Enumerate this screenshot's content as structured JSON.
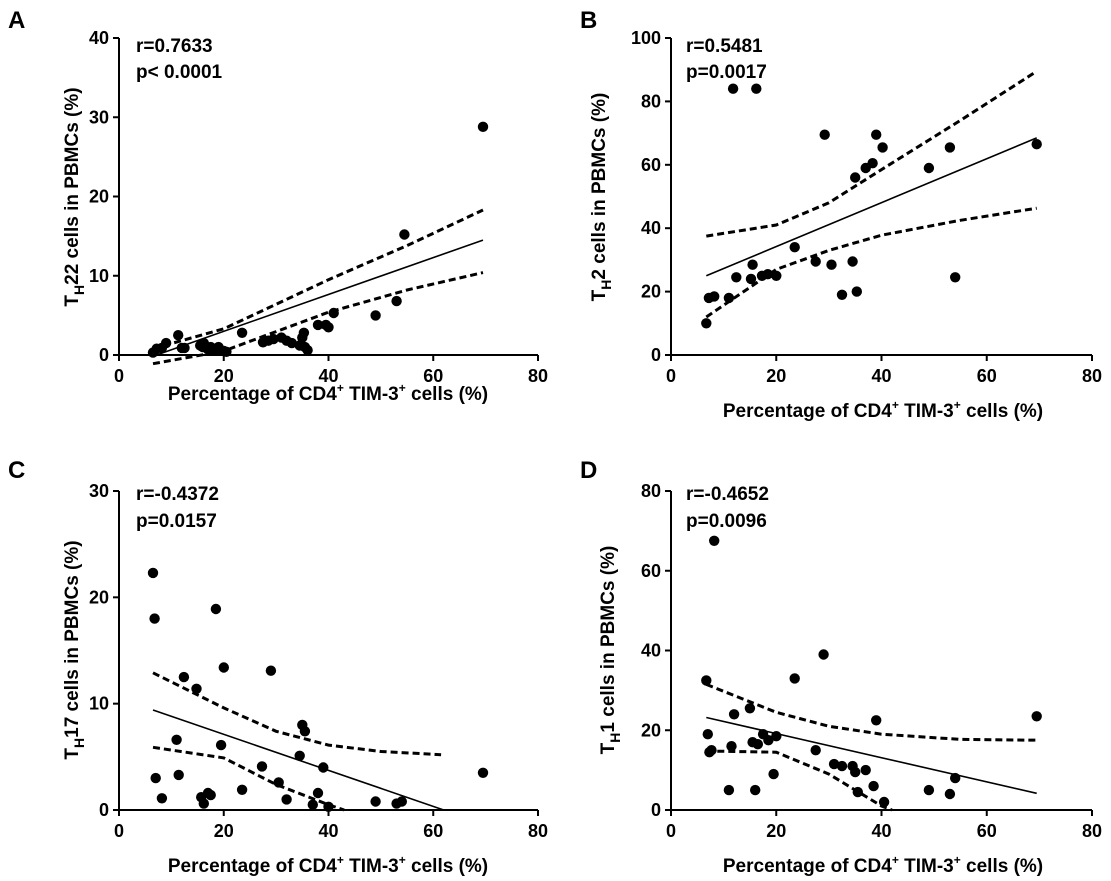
{
  "chart_data": [
    {
      "panel": "A",
      "type": "scatter",
      "stat_r": "r=0.7633",
      "stat_p": "p< 0.0001",
      "ylabel_main": "T",
      "ylabel_sub": "H",
      "ylabel_rest": "22 cells in PBMCs (%)",
      "xlabel_main": "Percentage of CD4",
      "xlabel_sup1": "+",
      "xlabel_mid": " TIM-3",
      "xlabel_sup2": "+",
      "xlabel_rest": " cells (%)",
      "xlim": [
        0,
        80
      ],
      "ylim": [
        0,
        40
      ],
      "xticks": [
        0,
        20,
        40,
        60,
        80
      ],
      "yticks": [
        0,
        10,
        20,
        30,
        40
      ],
      "points": [
        [
          6.5,
          0.3
        ],
        [
          7.2,
          0.8
        ],
        [
          8.2,
          0.9
        ],
        [
          9,
          1.5
        ],
        [
          11.3,
          2.5
        ],
        [
          12,
          0.9
        ],
        [
          12.5,
          0.9
        ],
        [
          15.5,
          1.2
        ],
        [
          16,
          1
        ],
        [
          16.2,
          1.5
        ],
        [
          17,
          0.7
        ],
        [
          17.5,
          1
        ],
        [
          18.5,
          0.6
        ],
        [
          19,
          1
        ],
        [
          20,
          0.5
        ],
        [
          20.5,
          0.4
        ],
        [
          23.5,
          2.8
        ],
        [
          27.5,
          1.6
        ],
        [
          28.5,
          1.8
        ],
        [
          29.5,
          2
        ],
        [
          31,
          2.2
        ],
        [
          32,
          1.8
        ],
        [
          33,
          1.5
        ],
        [
          34.5,
          1.2
        ],
        [
          35,
          2.2
        ],
        [
          35.3,
          2.8
        ],
        [
          35.5,
          1
        ],
        [
          36,
          0.6
        ],
        [
          38,
          3.8
        ],
        [
          39.5,
          3.8
        ],
        [
          40,
          3.5
        ],
        [
          41,
          5.3
        ],
        [
          49,
          5
        ],
        [
          53,
          6.8
        ],
        [
          54.5,
          15.2
        ],
        [
          69.5,
          28.8
        ]
      ],
      "fit": [
        [
          6.5,
          -0.15
        ],
        [
          69.5,
          14.5
        ]
      ],
      "ci_upper": [
        [
          6.5,
          0.8
        ],
        [
          20,
          3.3
        ],
        [
          40,
          9.5
        ],
        [
          55,
          13.8
        ],
        [
          69.5,
          18.3
        ]
      ],
      "ci_lower": [
        [
          6.5,
          -1.1
        ],
        [
          20,
          0.5
        ],
        [
          40,
          5.4
        ],
        [
          55,
          8.2
        ],
        [
          69.5,
          10.4
        ]
      ]
    },
    {
      "panel": "B",
      "type": "scatter",
      "stat_r": "r=0.5481",
      "stat_p": "p=0.0017",
      "ylabel_main": "T",
      "ylabel_sub": "H",
      "ylabel_rest": "2 cells in PBMCs (%)",
      "xlabel_main": "Percentage of CD4",
      "xlabel_sup1": "+",
      "xlabel_mid": " TIM-3",
      "xlabel_sup2": "+",
      "xlabel_rest": " cells (%)",
      "xlim": [
        0,
        80
      ],
      "ylim": [
        0,
        100
      ],
      "xticks": [
        0,
        20,
        40,
        60,
        80
      ],
      "yticks": [
        0,
        20,
        40,
        60,
        80,
        100
      ],
      "points": [
        [
          6.7,
          10
        ],
        [
          7.2,
          18
        ],
        [
          8.2,
          18.5
        ],
        [
          11,
          18
        ],
        [
          11.8,
          84
        ],
        [
          12.4,
          24.5
        ],
        [
          15.2,
          24
        ],
        [
          15.5,
          28.5
        ],
        [
          16.2,
          84
        ],
        [
          17.3,
          25
        ],
        [
          18.4,
          25.5
        ],
        [
          20,
          25
        ],
        [
          23.5,
          34
        ],
        [
          27.5,
          29.5
        ],
        [
          29.2,
          69.5
        ],
        [
          30.5,
          28.5
        ],
        [
          32.5,
          19
        ],
        [
          34.5,
          29.5
        ],
        [
          35,
          56
        ],
        [
          35.3,
          20
        ],
        [
          37,
          59
        ],
        [
          38.3,
          60.5
        ],
        [
          39,
          69.5
        ],
        [
          40.2,
          65.5
        ],
        [
          49,
          59
        ],
        [
          53,
          65.5
        ],
        [
          54,
          24.5
        ],
        [
          69.5,
          66.5
        ]
      ],
      "fit": [
        [
          6.7,
          25
        ],
        [
          69.5,
          68.5
        ]
      ],
      "ci_upper": [
        [
          6.7,
          37.5
        ],
        [
          20,
          41
        ],
        [
          30,
          48
        ],
        [
          40,
          58.5
        ],
        [
          55,
          74
        ],
        [
          69.5,
          89.5
        ]
      ],
      "ci_lower": [
        [
          6.7,
          12
        ],
        [
          20,
          27
        ],
        [
          30,
          33
        ],
        [
          40,
          37.8
        ],
        [
          55,
          42.5
        ],
        [
          69.5,
          46.3
        ]
      ]
    },
    {
      "panel": "C",
      "type": "scatter",
      "stat_r": "r=-0.4372",
      "stat_p": "p=0.0157",
      "ylabel_main": "T",
      "ylabel_sub": "H",
      "ylabel_rest": "17 cells in PBMCs (%)",
      "xlabel_main": "Percentage of CD4",
      "xlabel_sup1": "+",
      "xlabel_mid": " TIM-3",
      "xlabel_sup2": "+",
      "xlabel_rest": " cells (%)",
      "xlim": [
        0,
        80
      ],
      "ylim": [
        0,
        30
      ],
      "xticks": [
        0,
        20,
        40,
        60,
        80
      ],
      "yticks": [
        0,
        10,
        20,
        30
      ],
      "points": [
        [
          6.5,
          22.3
        ],
        [
          6.8,
          18
        ],
        [
          7,
          3
        ],
        [
          8.2,
          1.1
        ],
        [
          11,
          6.6
        ],
        [
          11.4,
          3.3
        ],
        [
          12.4,
          12.5
        ],
        [
          14.8,
          11.4
        ],
        [
          15.7,
          1.2
        ],
        [
          16.2,
          0.6
        ],
        [
          17,
          1.6
        ],
        [
          17.5,
          1.4
        ],
        [
          18.5,
          18.9
        ],
        [
          19.5,
          6.1
        ],
        [
          20,
          13.4
        ],
        [
          23.5,
          1.9
        ],
        [
          27.3,
          4.1
        ],
        [
          29,
          13.1
        ],
        [
          30.5,
          2.6
        ],
        [
          32,
          1
        ],
        [
          34.5,
          5.1
        ],
        [
          35,
          8
        ],
        [
          35.5,
          7.4
        ],
        [
          37,
          0.5
        ],
        [
          38,
          1.6
        ],
        [
          39,
          4
        ],
        [
          40,
          0.3
        ],
        [
          49,
          0.8
        ],
        [
          53,
          0.6
        ],
        [
          54,
          0.8
        ],
        [
          69.5,
          3.5
        ]
      ],
      "fit": [
        [
          6.5,
          9.4
        ],
        [
          62,
          0
        ]
      ],
      "ci_upper": [
        [
          6.5,
          12.9
        ],
        [
          20,
          9.6
        ],
        [
          30,
          7.4
        ],
        [
          40,
          6.1
        ],
        [
          50,
          5.5
        ],
        [
          61.5,
          5.2
        ]
      ],
      "ci_lower": [
        [
          6.5,
          5.9
        ],
        [
          20,
          4.9
        ],
        [
          30,
          2.4
        ],
        [
          40,
          0.5
        ],
        [
          43,
          0
        ]
      ]
    },
    {
      "panel": "D",
      "type": "scatter",
      "stat_r": "r=-0.4652",
      "stat_p": "p=0.0096",
      "ylabel_main": "T",
      "ylabel_sub": "H",
      "ylabel_rest": "1 cells in PBMCs (%)",
      "xlabel_main": "Percentage of CD4",
      "xlabel_sup1": "+",
      "xlabel_mid": " TIM-3",
      "xlabel_sup2": "+",
      "xlabel_rest": " cells (%)",
      "xlim": [
        0,
        80
      ],
      "ylim": [
        0,
        80
      ],
      "xticks": [
        0,
        20,
        40,
        60,
        80
      ],
      "yticks": [
        0,
        20,
        40,
        60,
        80
      ],
      "points": [
        [
          6.7,
          32.5
        ],
        [
          7,
          19
        ],
        [
          7.3,
          14.5
        ],
        [
          7.7,
          15
        ],
        [
          8.2,
          67.5
        ],
        [
          11,
          5
        ],
        [
          11.5,
          16
        ],
        [
          12,
          24
        ],
        [
          15,
          25.5
        ],
        [
          15.5,
          17
        ],
        [
          16,
          5
        ],
        [
          16.5,
          16.5
        ],
        [
          17.5,
          19
        ],
        [
          18.5,
          17.5
        ],
        [
          19.5,
          9
        ],
        [
          20,
          18.5
        ],
        [
          23.5,
          33
        ],
        [
          27.5,
          15
        ],
        [
          29,
          39
        ],
        [
          31,
          11.5
        ],
        [
          32.5,
          11
        ],
        [
          34.5,
          11
        ],
        [
          35,
          9.5
        ],
        [
          35.5,
          4.5
        ],
        [
          37,
          10
        ],
        [
          38.5,
          6
        ],
        [
          39,
          22.5
        ],
        [
          40.5,
          2
        ],
        [
          49,
          5
        ],
        [
          53,
          4
        ],
        [
          54,
          8
        ],
        [
          69.5,
          23.5
        ]
      ],
      "fit": [
        [
          6.7,
          23.2
        ],
        [
          69.5,
          4.2
        ]
      ],
      "ci_upper": [
        [
          6.7,
          31.5
        ],
        [
          20,
          24.5
        ],
        [
          30,
          21
        ],
        [
          40,
          19
        ],
        [
          55,
          17.7
        ],
        [
          69.5,
          17.5
        ]
      ],
      "ci_lower": [
        [
          6.7,
          14.8
        ],
        [
          20,
          14.5
        ],
        [
          30,
          9
        ],
        [
          40,
          1
        ],
        [
          42,
          0
        ]
      ]
    }
  ]
}
